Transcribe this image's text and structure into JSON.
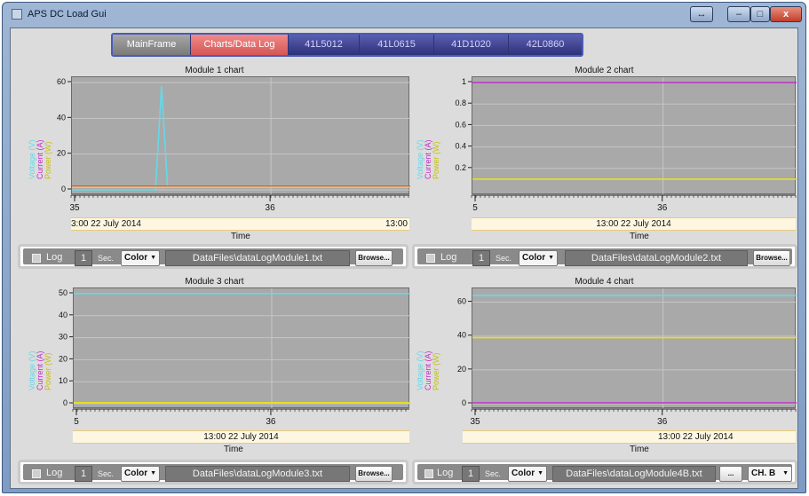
{
  "window": {
    "title": "APS DC Load Gui",
    "restore_alt": "↔",
    "minimize": "–",
    "maximize": "□",
    "close": "x"
  },
  "tabs": [
    {
      "label": "MainFrame"
    },
    {
      "label": "Charts/Data Log"
    },
    {
      "label": "41L5012"
    },
    {
      "label": "41L0615"
    },
    {
      "label": "41D1020"
    },
    {
      "label": "42L0860"
    }
  ],
  "series_colors": {
    "voltage": "#66d9e8",
    "current": "#c030c8",
    "power": "#e8e020"
  },
  "charts": [
    {
      "title": "Module 1 chart",
      "ylabels": [
        "Voltage (V)",
        "Current (A)",
        "Power (W)"
      ],
      "yticks": [
        "0",
        "20",
        "40",
        "60"
      ],
      "xticks": [
        "35",
        "36"
      ],
      "date_left": "3:00 22 July 2014",
      "date_right": "13:00",
      "xlabel": "Time"
    },
    {
      "title": "Module 2 chart",
      "ylabels": [
        "Voltage (V)",
        "Current (A)",
        "Power (W)"
      ],
      "yticks": [
        "0.2",
        "0.4",
        "0.6",
        "0.8",
        "1"
      ],
      "xticks": [
        "5",
        "36"
      ],
      "date_center": "13:00 22 July 2014",
      "xlabel": "Time"
    },
    {
      "title": "Module 3 chart",
      "ylabels": [
        "Voltage (V)",
        "Current (A)",
        "Power (W)"
      ],
      "yticks": [
        "0",
        "10",
        "20",
        "30",
        "40",
        "50"
      ],
      "xticks": [
        "5",
        "36"
      ],
      "date_center": "13:00 22 July 2014",
      "xlabel": "Time"
    },
    {
      "title": "Module 4 chart",
      "ylabels": [
        "Voltage (V)",
        "Current (A)",
        "Power (W)"
      ],
      "yticks": [
        "0",
        "20",
        "40",
        "60"
      ],
      "xticks": [
        "35",
        "36"
      ],
      "date_center": "13:00 22 July 2014",
      "xlabel": "Time"
    }
  ],
  "chart_data": [
    {
      "type": "line",
      "title": "Module 1 chart",
      "xlabel": "Time",
      "ylim": [
        0,
        60
      ],
      "series": [
        {
          "name": "Voltage (V)",
          "x": [
            35.0,
            35.42,
            35.45,
            35.48,
            36.7
          ],
          "values": [
            0,
            0,
            58,
            2,
            2
          ]
        },
        {
          "name": "Current (A)",
          "x": [
            35.0,
            36.7
          ],
          "values": [
            2,
            2
          ]
        },
        {
          "name": "Power (W)",
          "x": [
            35.0,
            36.7
          ],
          "values": [
            1.5,
            1.5
          ]
        }
      ]
    },
    {
      "type": "line",
      "title": "Module 2 chart",
      "xlabel": "Time",
      "ylim": [
        0,
        1
      ],
      "series": [
        {
          "name": "Current (A)",
          "x": [
            35.0,
            36.7
          ],
          "values": [
            1,
            1
          ]
        },
        {
          "name": "Power (W)",
          "x": [
            35.0,
            36.7
          ],
          "values": [
            0.1,
            0.1
          ]
        }
      ]
    },
    {
      "type": "line",
      "title": "Module 3 chart",
      "xlabel": "Time",
      "ylim": [
        0,
        50
      ],
      "series": [
        {
          "name": "Voltage (V)",
          "x": [
            35.0,
            36.7
          ],
          "values": [
            50,
            50
          ]
        },
        {
          "name": "Power (W)",
          "x": [
            35.0,
            36.7
          ],
          "values": [
            0.5,
            0.5
          ]
        }
      ]
    },
    {
      "type": "line",
      "title": "Module 4 chart",
      "xlabel": "Time",
      "ylim": [
        0,
        65
      ],
      "series": [
        {
          "name": "Voltage (V)",
          "x": [
            35.0,
            36.7
          ],
          "values": [
            64,
            64
          ]
        },
        {
          "name": "Current (A)",
          "x": [
            35.0,
            36.7
          ],
          "values": [
            0.5,
            0.5
          ]
        },
        {
          "name": "Power (W)",
          "x": [
            35.0,
            36.7
          ],
          "values": [
            39,
            39
          ]
        }
      ]
    }
  ],
  "controls": [
    {
      "log_label": "Log",
      "seconds": "1",
      "sec_label": "Sec.",
      "color_label": "Color",
      "file": "DataFiles\\dataLogModule1.txt",
      "browse": "Browse..."
    },
    {
      "log_label": "Log",
      "seconds": "1",
      "sec_label": "Sec.",
      "color_label": "Color",
      "file": "DataFiles\\dataLogModule2.txt",
      "browse": "Browse..."
    },
    {
      "log_label": "Log",
      "seconds": "1",
      "sec_label": "Sec.",
      "color_label": "Color",
      "file": "DataFiles\\dataLogModule3.txt",
      "browse": "Browse..."
    },
    {
      "log_label": "Log",
      "seconds": "1",
      "sec_label": "Sec.",
      "color_label": "Color",
      "file": "DataFiles\\dataLogModule4B.txt",
      "browse": "...",
      "channel": "CH. B"
    }
  ]
}
